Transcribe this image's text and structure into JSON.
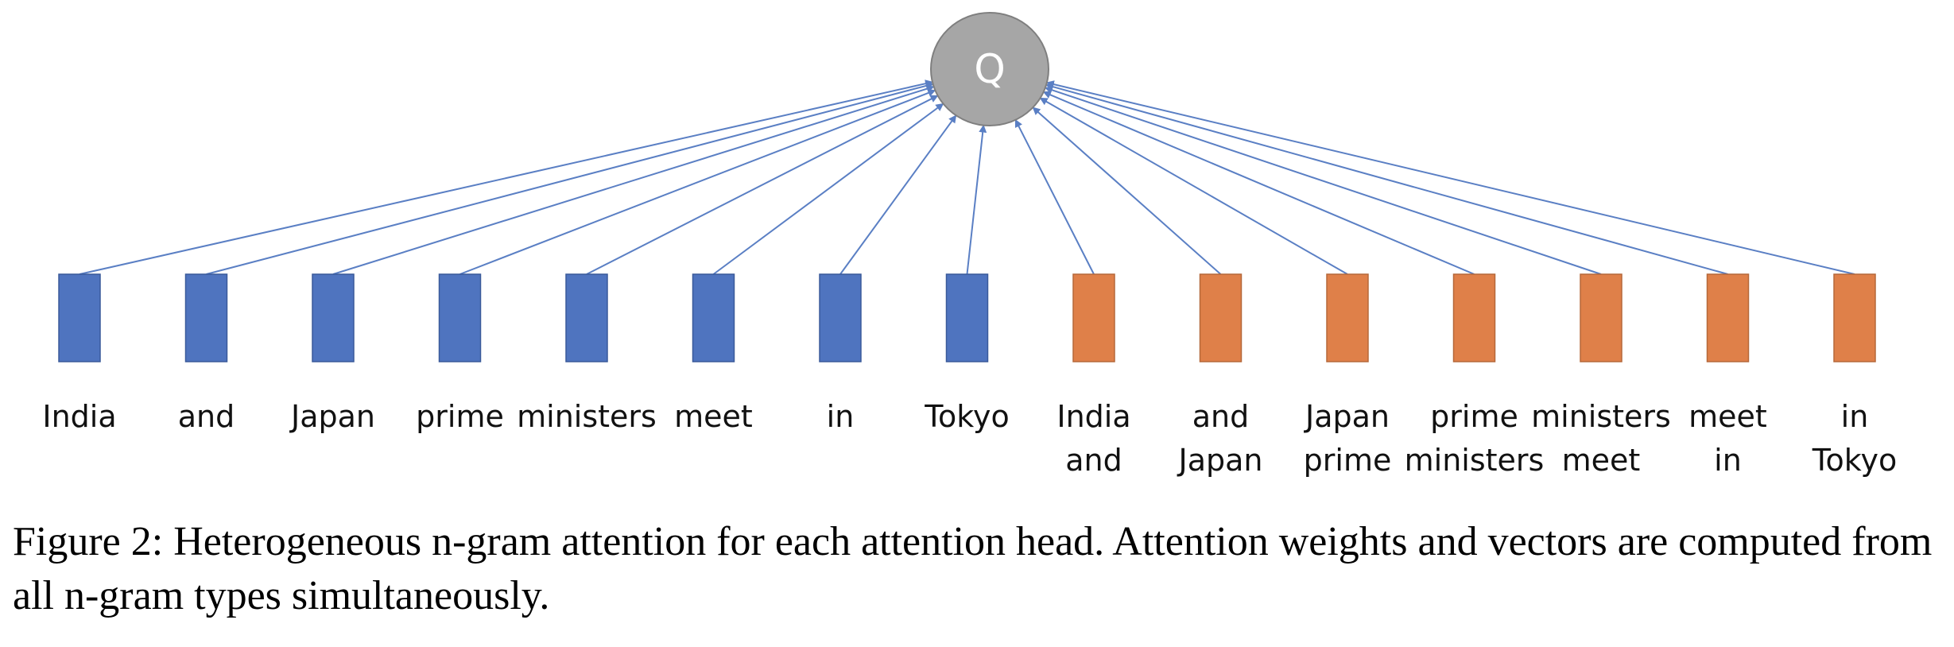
{
  "query": {
    "label": "Q",
    "fill": "#a6a6a6",
    "stroke": "#7f7f7f"
  },
  "colors": {
    "unigram": "#4f74bf",
    "bigram": "#df8049",
    "arrow": "#5a7fc4"
  },
  "unigrams": [
    {
      "lines": [
        "India"
      ]
    },
    {
      "lines": [
        "and"
      ]
    },
    {
      "lines": [
        "Japan"
      ]
    },
    {
      "lines": [
        "prime"
      ]
    },
    {
      "lines": [
        "ministers"
      ]
    },
    {
      "lines": [
        "meet"
      ]
    },
    {
      "lines": [
        "in"
      ]
    },
    {
      "lines": [
        "Tokyo"
      ]
    }
  ],
  "bigrams": [
    {
      "lines": [
        "India",
        "and"
      ]
    },
    {
      "lines": [
        "and",
        "Japan"
      ]
    },
    {
      "lines": [
        "Japan",
        "prime"
      ]
    },
    {
      "lines": [
        "prime",
        "ministers"
      ]
    },
    {
      "lines": [
        "ministers",
        "meet"
      ]
    },
    {
      "lines": [
        "meet",
        "in"
      ]
    },
    {
      "lines": [
        "in",
        "Tokyo"
      ]
    }
  ],
  "caption": "Figure 2: Heterogeneous n-gram attention for each attention head. Attention weights and vectors are computed from all n-gram types simultaneously."
}
